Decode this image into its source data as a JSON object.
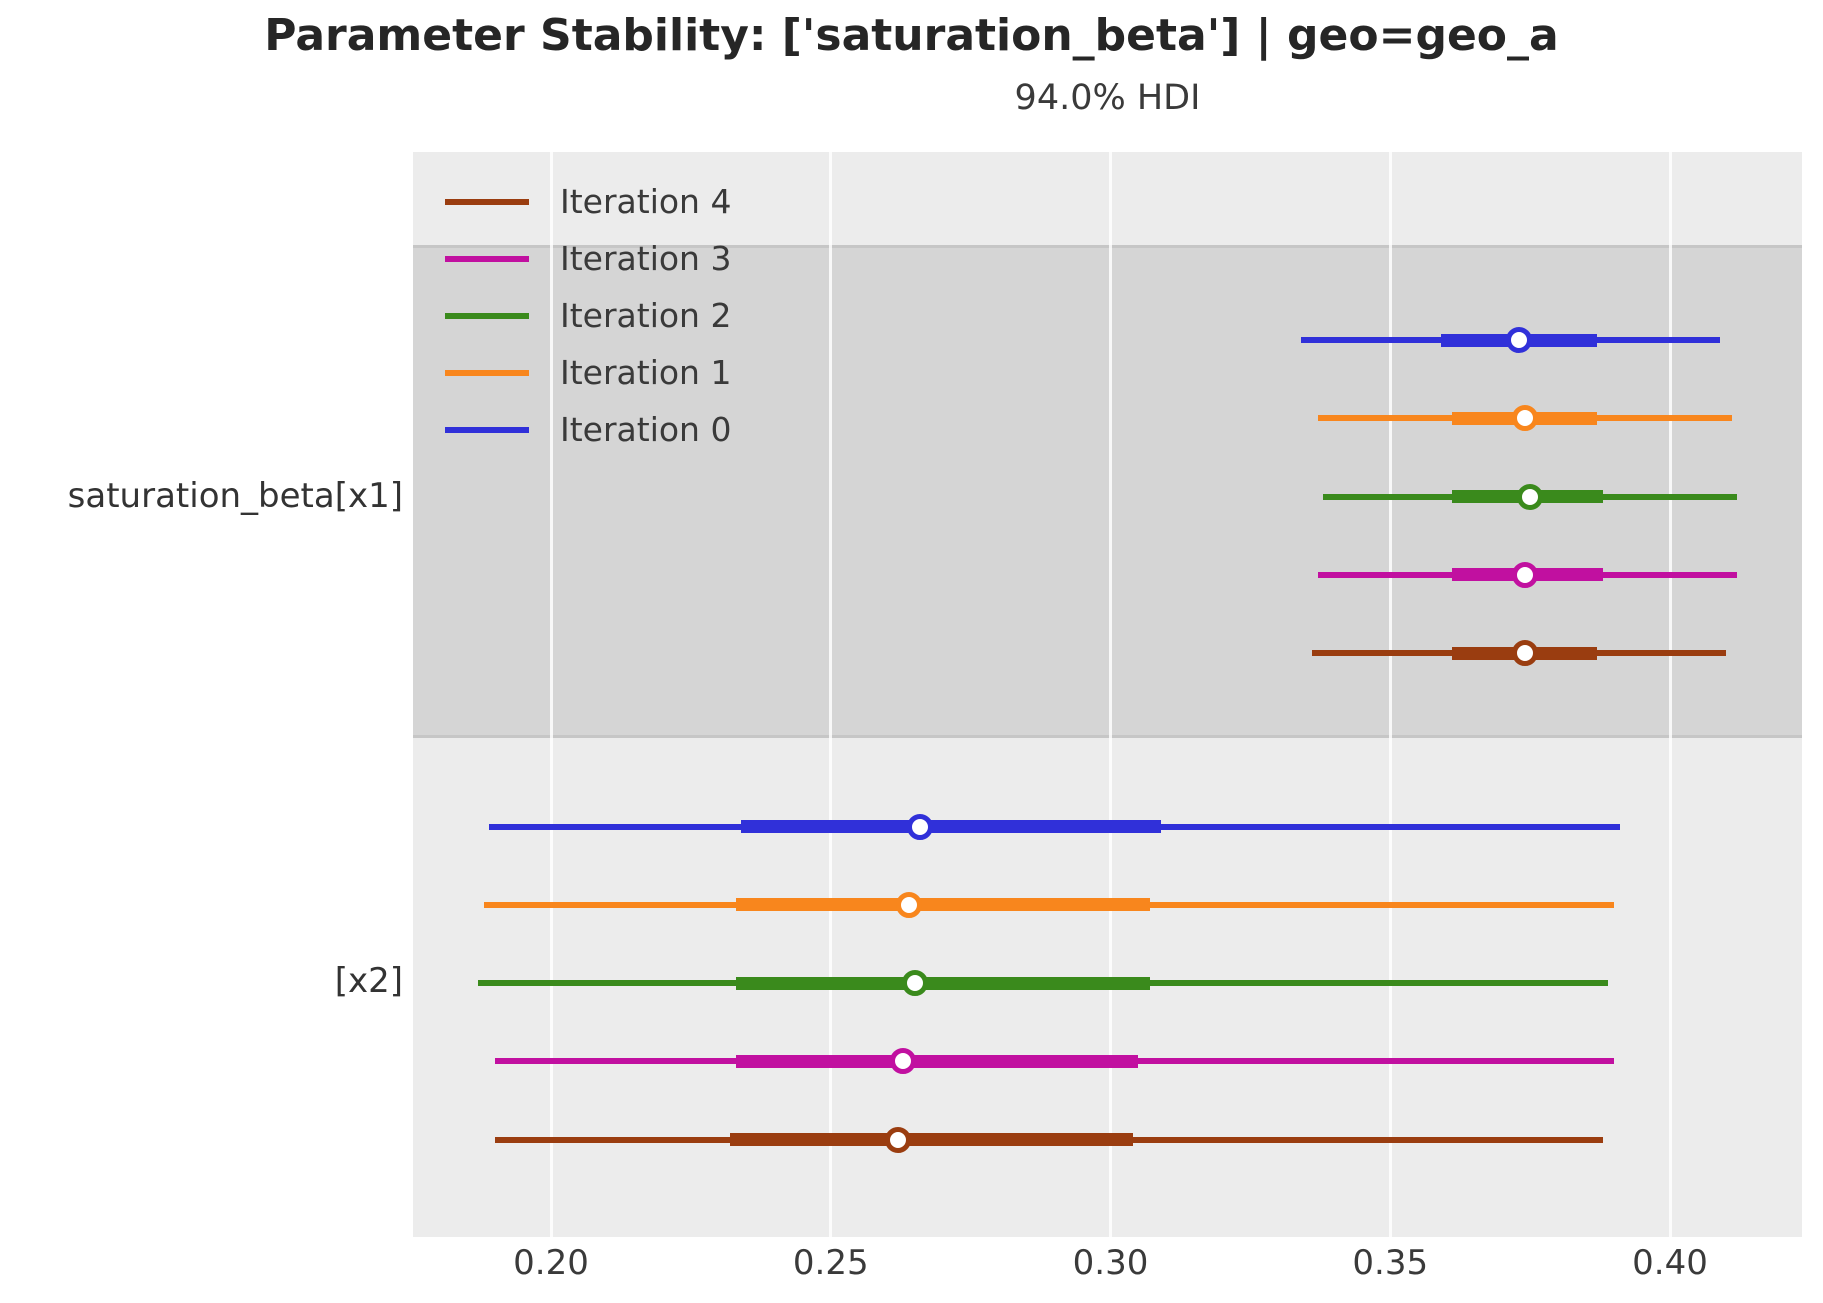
{
  "figure": {
    "title": "Parameter Stability: ['saturation_beta'] | geo=geo_a",
    "subtitle": "94.0% HDI"
  },
  "chart_data": {
    "type": "forest",
    "title": "Parameter Stability: ['saturation_beta'] | geo=geo_a",
    "subtitle": "94.0% HDI",
    "hdi_probability": "94.0%",
    "xlabel": "",
    "x_tick_values": [
      0.2,
      0.25,
      0.3,
      0.35,
      0.4
    ],
    "x_tick_labels": [
      "0.20",
      "0.25",
      "0.30",
      "0.35",
      "0.40"
    ],
    "x_range": [
      0.1753,
      0.4236
    ],
    "grid": "vertical-white-gridlines",
    "legend_position": "upper-left-inside",
    "legend": [
      {
        "label": "Iteration 4",
        "color": "#9a3d10"
      },
      {
        "label": "Iteration 3",
        "color": "#c110a0"
      },
      {
        "label": "Iteration 2",
        "color": "#3a8a1c"
      },
      {
        "label": "Iteration 1",
        "color": "#f8861d"
      },
      {
        "label": "Iteration 0",
        "color": "#3030d9"
      }
    ],
    "groups": [
      {
        "label": "saturation_beta[x1]",
        "band": "dark",
        "rows": [
          {
            "series": "Iteration 0",
            "color": "#3030d9",
            "hdi_lo": 0.334,
            "iq_lo": 0.359,
            "median": 0.373,
            "iq_hi": 0.387,
            "hdi_hi": 0.409
          },
          {
            "series": "Iteration 1",
            "color": "#f8861d",
            "hdi_lo": 0.337,
            "iq_lo": 0.361,
            "median": 0.374,
            "iq_hi": 0.387,
            "hdi_hi": 0.411
          },
          {
            "series": "Iteration 2",
            "color": "#3a8a1c",
            "hdi_lo": 0.338,
            "iq_lo": 0.361,
            "median": 0.375,
            "iq_hi": 0.388,
            "hdi_hi": 0.412
          },
          {
            "series": "Iteration 3",
            "color": "#c110a0",
            "hdi_lo": 0.337,
            "iq_lo": 0.361,
            "median": 0.374,
            "iq_hi": 0.388,
            "hdi_hi": 0.412
          },
          {
            "series": "Iteration 4",
            "color": "#9a3d10",
            "hdi_lo": 0.336,
            "iq_lo": 0.361,
            "median": 0.374,
            "iq_hi": 0.387,
            "hdi_hi": 0.41
          }
        ]
      },
      {
        "label": "[x2]",
        "band": "light",
        "rows": [
          {
            "series": "Iteration 0",
            "color": "#3030d9",
            "hdi_lo": 0.189,
            "iq_lo": 0.234,
            "median": 0.266,
            "iq_hi": 0.309,
            "hdi_hi": 0.391
          },
          {
            "series": "Iteration 1",
            "color": "#f8861d",
            "hdi_lo": 0.188,
            "iq_lo": 0.233,
            "median": 0.264,
            "iq_hi": 0.307,
            "hdi_hi": 0.39
          },
          {
            "series": "Iteration 2",
            "color": "#3a8a1c",
            "hdi_lo": 0.187,
            "iq_lo": 0.233,
            "median": 0.265,
            "iq_hi": 0.307,
            "hdi_hi": 0.389
          },
          {
            "series": "Iteration 3",
            "color": "#c110a0",
            "hdi_lo": 0.19,
            "iq_lo": 0.233,
            "median": 0.263,
            "iq_hi": 0.305,
            "hdi_hi": 0.39
          },
          {
            "series": "Iteration 4",
            "color": "#9a3d10",
            "hdi_lo": 0.19,
            "iq_lo": 0.232,
            "median": 0.262,
            "iq_hi": 0.304,
            "hdi_hi": 0.388
          }
        ]
      }
    ],
    "colors": {
      "band_light": "#ececec",
      "band_dark": "#d5d5d5",
      "band_edge": "#c6c6c6",
      "gridline": "#ffffff",
      "text": "#3a3a3a"
    }
  }
}
